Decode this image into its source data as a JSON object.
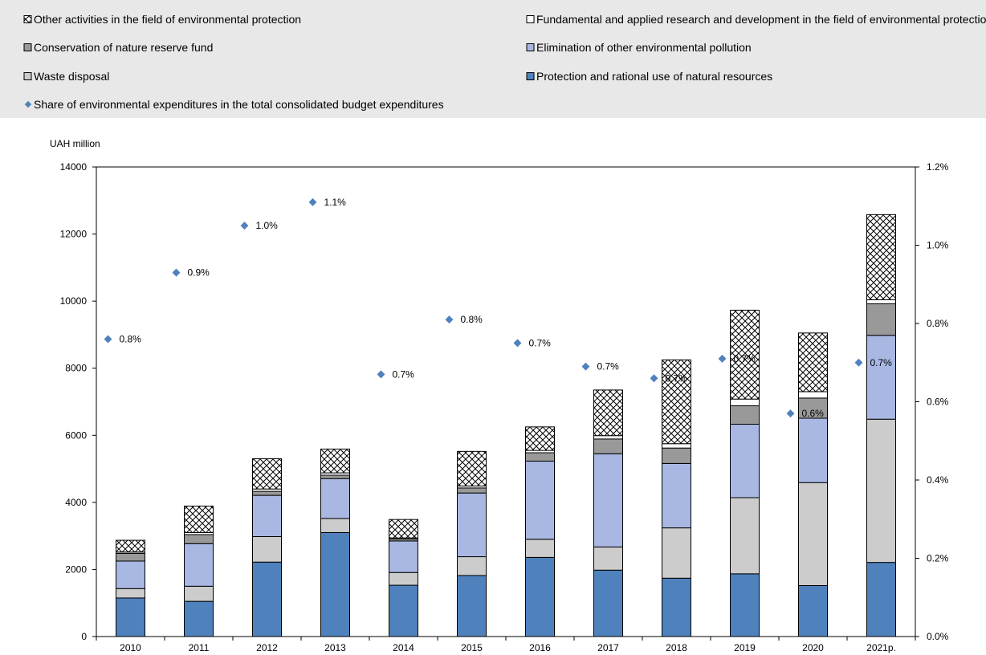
{
  "chart_data": {
    "type": "bar",
    "stacked": true,
    "categories": [
      "2010",
      "2011",
      "2012",
      "2013",
      "2014",
      "2015",
      "2016",
      "2017",
      "2018",
      "2019",
      "2020",
      "2021p."
    ],
    "series": [
      {
        "name": "Protection and rational use of natural resources",
        "color": "#4f81bd",
        "values": [
          1150,
          1050,
          2220,
          3100,
          1530,
          1820,
          2360,
          1980,
          1740,
          1870,
          1520,
          2210
        ]
      },
      {
        "name": "Waste disposal",
        "color": "#cccccc",
        "values": [
          280,
          450,
          760,
          420,
          380,
          560,
          540,
          690,
          1500,
          2270,
          3070,
          4270
        ]
      },
      {
        "name": "Elimination of other environmental pollution",
        "color": "#a9b8e3",
        "values": [
          820,
          1270,
          1230,
          1190,
          940,
          1900,
          2330,
          2780,
          1920,
          2190,
          1920,
          2500
        ]
      },
      {
        "name": "Conservation of nature reserve fund",
        "color": "#999999",
        "values": [
          230,
          270,
          120,
          100,
          60,
          150,
          250,
          440,
          460,
          550,
          600,
          940
        ]
      },
      {
        "name": "Fundamental and applied research and development in the field of environmental protection",
        "color": "#ffffff",
        "values": [
          40,
          60,
          70,
          70,
          30,
          60,
          70,
          100,
          130,
          200,
          190,
          120
        ]
      },
      {
        "name": "Other activities in the field of environmental protection",
        "color": "#ffffff",
        "hatch": true,
        "values": [
          350,
          790,
          900,
          710,
          550,
          1030,
          700,
          1360,
          2500,
          2650,
          1750,
          2540
        ]
      }
    ],
    "share_series": {
      "name": "Share of environmental expenditures in the total consolidated budget expenditures",
      "color": "#4f81bd",
      "values": [
        0.76,
        0.93,
        1.05,
        1.11,
        0.67,
        0.81,
        0.75,
        0.69,
        0.66,
        0.71,
        0.57,
        0.7
      ],
      "labels": [
        "0.8%",
        "0.9%",
        "1.0%",
        "1.1%",
        "0.7%",
        "0.8%",
        "0.7%",
        "0.7%",
        "0.7%",
        "0.7%",
        "0.6%",
        "0.7%"
      ]
    },
    "y_left": {
      "label": "UAH million",
      "min": 0,
      "max": 14000,
      "ticks": [
        0,
        2000,
        4000,
        6000,
        8000,
        10000,
        12000,
        14000
      ]
    },
    "y_right": {
      "min": 0,
      "max": 1.2,
      "ticks": [
        0,
        0.2,
        0.4,
        0.6,
        0.8,
        1.0,
        1.2
      ],
      "tick_labels": [
        "0.0%",
        "0.2%",
        "0.4%",
        "0.6%",
        "0.8%",
        "1.0%",
        "1.2%"
      ]
    },
    "plot_background": "#ffffff",
    "legend_background": "#e8e8e8",
    "legend_placement": "top",
    "legend_order": [
      5,
      4,
      3,
      2,
      1,
      0,
      "share"
    ]
  }
}
